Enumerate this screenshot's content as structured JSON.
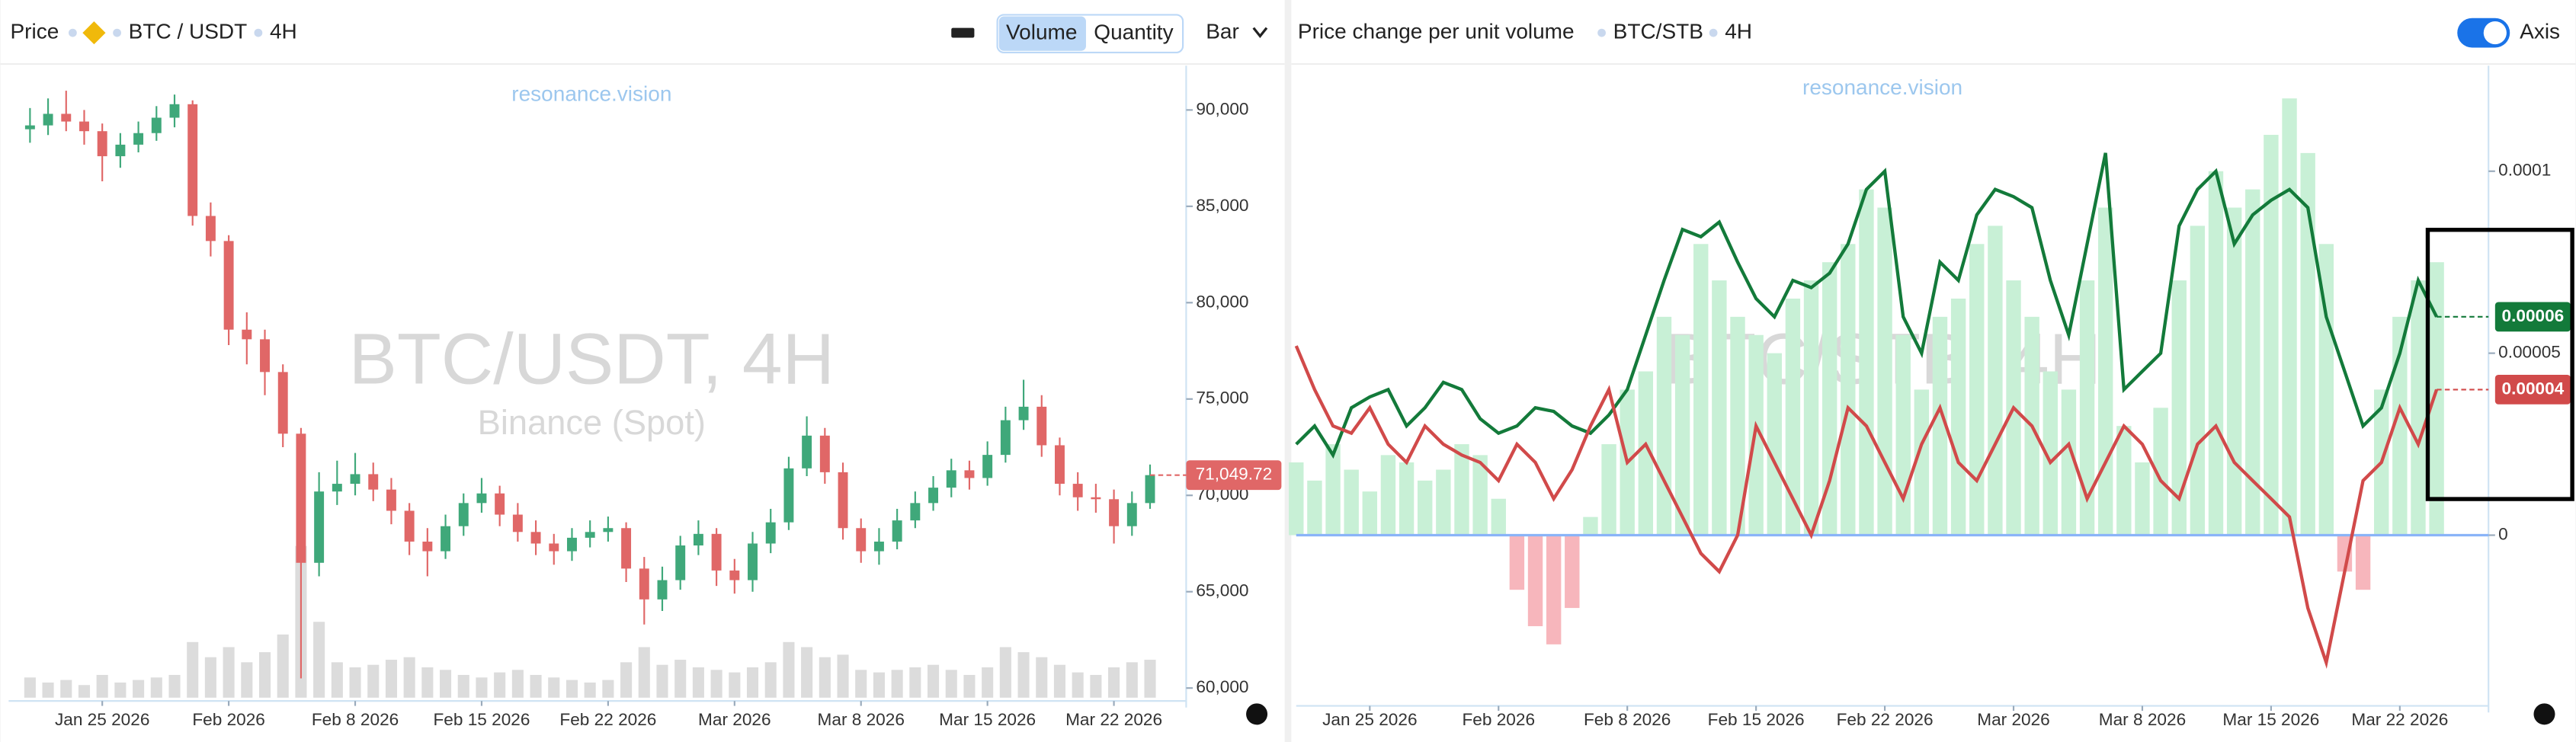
{
  "left_toolbar": {
    "label": "Price",
    "symbol": "BTC / USDT",
    "interval": "4H",
    "toggle_on": "Volume",
    "toggle_off": "Quantity",
    "style": "Bar"
  },
  "right_toolbar": {
    "label": "Price change per unit volume",
    "symbol": "BTC/STB",
    "interval": "4H",
    "switch": "Axis"
  },
  "chart_data": [
    {
      "type": "candlestick",
      "source": "resonance.vision",
      "watermark": "BTC/USDT, 4H",
      "watermark_subtitle": "Binance (Spot)",
      "x": [
        "2026-01-21",
        "2026-01-22",
        "2026-01-23",
        "2026-01-24",
        "2026-01-25",
        "2026-01-26",
        "2026-01-27",
        "2026-01-28",
        "2026-01-29",
        "2026-01-30",
        "2026-01-31",
        "2026-02-01",
        "2026-02-02",
        "2026-02-03",
        "2026-02-04",
        "2026-02-05",
        "2026-02-06",
        "2026-02-07",
        "2026-02-08",
        "2026-02-09",
        "2026-02-10",
        "2026-02-11",
        "2026-02-12",
        "2026-02-13",
        "2026-02-14",
        "2026-02-15",
        "2026-02-16",
        "2026-02-17",
        "2026-02-18",
        "2026-02-19",
        "2026-02-20",
        "2026-02-21",
        "2026-02-22",
        "2026-02-23",
        "2026-02-24",
        "2026-02-25",
        "2026-02-26",
        "2026-02-27",
        "2026-02-28",
        "2026-03-01",
        "2026-03-02",
        "2026-03-03",
        "2026-03-04",
        "2026-03-05",
        "2026-03-06",
        "2026-03-07",
        "2026-03-08",
        "2026-03-09",
        "2026-03-10",
        "2026-03-11",
        "2026-03-12",
        "2026-03-13",
        "2026-03-14",
        "2026-03-15",
        "2026-03-16",
        "2026-03-17",
        "2026-03-18",
        "2026-03-19",
        "2026-03-20",
        "2026-03-21",
        "2026-03-22",
        "2026-03-23",
        "2026-03-24"
      ],
      "open": [
        89000,
        89200,
        89800,
        89400,
        88900,
        87600,
        88200,
        88800,
        89600,
        90300,
        84500,
        83200,
        78600,
        78100,
        76400,
        73200,
        66500,
        70200,
        70600,
        71100,
        70300,
        69200,
        67600,
        67100,
        68400,
        69600,
        70100,
        69000,
        68100,
        67500,
        67100,
        67800,
        68100,
        68300,
        66200,
        64600,
        65600,
        67400,
        68000,
        66100,
        65600,
        67500,
        68600,
        71400,
        73100,
        71200,
        68300,
        67100,
        67600,
        68700,
        69600,
        70400,
        71300,
        70900,
        72100,
        73900,
        74600,
        72600,
        70600,
        69900,
        69800,
        68400,
        69600
      ],
      "high": [
        90100,
        90600,
        91000,
        90000,
        89300,
        88800,
        89400,
        90200,
        90800,
        90500,
        85200,
        83500,
        79500,
        78600,
        76800,
        73500,
        71200,
        71800,
        72200,
        71700,
        70900,
        69600,
        68300,
        69000,
        70100,
        70900,
        70500,
        69600,
        68700,
        68000,
        68300,
        68700,
        68900,
        68600,
        66800,
        66300,
        67900,
        68700,
        68300,
        66700,
        68100,
        69300,
        72000,
        74100,
        73500,
        71700,
        68800,
        68300,
        69300,
        70200,
        71000,
        71900,
        71800,
        72800,
        74600,
        76000,
        75200,
        73000,
        71200,
        70600,
        70300,
        70200,
        71600
      ],
      "low": [
        88300,
        88700,
        88900,
        88200,
        86300,
        87000,
        87800,
        88400,
        89100,
        84000,
        82400,
        77800,
        76800,
        75200,
        72500,
        60500,
        65800,
        69500,
        70000,
        69700,
        68500,
        66900,
        65800,
        66700,
        67900,
        69100,
        68400,
        67600,
        66900,
        66400,
        66600,
        67300,
        67600,
        65500,
        63300,
        64000,
        65100,
        66900,
        65300,
        64900,
        65000,
        67000,
        68200,
        71000,
        70600,
        67700,
        66500,
        66400,
        67200,
        68300,
        69200,
        69900,
        70300,
        70500,
        71700,
        73400,
        72000,
        70000,
        69200,
        69100,
        67500,
        67900,
        69300
      ],
      "close": [
        89200,
        89800,
        89400,
        88900,
        87600,
        88200,
        88800,
        89600,
        90300,
        84500,
        83200,
        78600,
        78100,
        76400,
        73200,
        66500,
        70200,
        70600,
        71100,
        70300,
        69200,
        67600,
        67100,
        68400,
        69600,
        70100,
        69000,
        68100,
        67500,
        67100,
        67800,
        68100,
        68300,
        66200,
        64600,
        65600,
        67400,
        68000,
        66100,
        65600,
        67500,
        68600,
        71400,
        73100,
        71200,
        68300,
        67100,
        67600,
        68700,
        69600,
        70400,
        71300,
        70900,
        72100,
        73900,
        74600,
        72600,
        70600,
        69900,
        69800,
        68400,
        69600,
        71049.72
      ],
      "volume": [
        8000,
        6000,
        7000,
        5000,
        9000,
        6000,
        7000,
        8000,
        9000,
        22000,
        16000,
        20000,
        14000,
        18000,
        25000,
        60000,
        30000,
        14000,
        12000,
        13000,
        15000,
        16000,
        12000,
        11000,
        9000,
        8000,
        10000,
        11000,
        9000,
        8000,
        7000,
        6000,
        7000,
        14000,
        20000,
        13000,
        15000,
        12000,
        11000,
        10000,
        12000,
        14000,
        22000,
        20000,
        16000,
        17000,
        11000,
        10000,
        11000,
        12000,
        13000,
        11000,
        9000,
        12000,
        20000,
        18000,
        16000,
        13000,
        10000,
        9000,
        12000,
        14000,
        15000
      ],
      "volume_lim": [
        0,
        100000
      ],
      "last_label": "71,049.72",
      "up_color": "#3fa87a",
      "down_color": "#e06767",
      "volume_color": "#dcdcdc",
      "xlim": [
        "2026-01-20",
        "2026-03-26"
      ],
      "xticks": [
        {
          "value": "2026-01-25",
          "label": "Jan 25 2026"
        },
        {
          "value": "2026-02-01",
          "label": "Feb 2026"
        },
        {
          "value": "2026-02-08",
          "label": "Feb 8 2026"
        },
        {
          "value": "2026-02-15",
          "label": "Feb 15 2026"
        },
        {
          "value": "2026-02-22",
          "label": "Feb 22 2026"
        },
        {
          "value": "2026-03-01",
          "label": "Mar 2026"
        },
        {
          "value": "2026-03-08",
          "label": "Mar 8 2026"
        },
        {
          "value": "2026-03-15",
          "label": "Mar 15 2026"
        },
        {
          "value": "2026-03-22",
          "label": "Mar 22 2026"
        }
      ],
      "ylim": [
        59500,
        92300
      ],
      "yticks": [
        {
          "value": 60000,
          "label": "60,000"
        },
        {
          "value": 65000,
          "label": "65,000"
        },
        {
          "value": 70000,
          "label": "70,000"
        },
        {
          "value": 75000,
          "label": "75,000"
        },
        {
          "value": 80000,
          "label": "80,000"
        },
        {
          "value": 85000,
          "label": "85,000"
        },
        {
          "value": 90000,
          "label": "90,000"
        }
      ]
    },
    {
      "type": "line",
      "source": "resonance.vision",
      "watermark": "BTC/STB, 4H",
      "x": [
        "2026-01-21",
        "2026-01-22",
        "2026-01-23",
        "2026-01-24",
        "2026-01-25",
        "2026-01-26",
        "2026-01-27",
        "2026-01-28",
        "2026-01-29",
        "2026-01-30",
        "2026-01-31",
        "2026-02-01",
        "2026-02-02",
        "2026-02-03",
        "2026-02-04",
        "2026-02-05",
        "2026-02-06",
        "2026-02-07",
        "2026-02-08",
        "2026-02-09",
        "2026-02-10",
        "2026-02-11",
        "2026-02-12",
        "2026-02-13",
        "2026-02-14",
        "2026-02-15",
        "2026-02-16",
        "2026-02-17",
        "2026-02-18",
        "2026-02-19",
        "2026-02-20",
        "2026-02-21",
        "2026-02-22",
        "2026-02-23",
        "2026-02-24",
        "2026-02-25",
        "2026-02-26",
        "2026-02-27",
        "2026-02-28",
        "2026-03-01",
        "2026-03-02",
        "2026-03-03",
        "2026-03-04",
        "2026-03-05",
        "2026-03-06",
        "2026-03-07",
        "2026-03-08",
        "2026-03-09",
        "2026-03-10",
        "2026-03-11",
        "2026-03-12",
        "2026-03-13",
        "2026-03-14",
        "2026-03-15",
        "2026-03-16",
        "2026-03-17",
        "2026-03-18",
        "2026-03-19",
        "2026-03-20",
        "2026-03-21",
        "2026-03-22",
        "2026-03-23",
        "2026-03-24"
      ],
      "histogram": {
        "color": "#c8f0d6",
        "negative_color": "#f7b6bc",
        "values": [
          2e-05,
          1.5e-05,
          2.5e-05,
          1.8e-05,
          1.2e-05,
          2.2e-05,
          2e-05,
          1.5e-05,
          1.8e-05,
          2.5e-05,
          2.2e-05,
          1e-05,
          -1.5e-05,
          -2.5e-05,
          -3e-05,
          -2e-05,
          5e-06,
          2.5e-05,
          4e-05,
          4.5e-05,
          6e-05,
          5.5e-05,
          8e-05,
          7e-05,
          6e-05,
          5.5e-05,
          5e-05,
          6.5e-05,
          7e-05,
          7.5e-05,
          8e-05,
          9.5e-05,
          9e-05,
          5.5e-05,
          4e-05,
          6e-05,
          6.5e-05,
          8e-05,
          8.5e-05,
          7e-05,
          6e-05,
          4.5e-05,
          4e-05,
          7e-05,
          9e-05,
          3e-05,
          2e-05,
          3.5e-05,
          7e-05,
          8.5e-05,
          0.0001,
          9e-05,
          9.5e-05,
          0.00011,
          0.00012,
          0.000105,
          8e-05,
          -1e-05,
          -1.5e-05,
          4e-05,
          6e-05,
          7e-05,
          7.5e-05
        ]
      },
      "series": [
        {
          "name": "BTC",
          "color": "#137a3a",
          "values": [
            2.5e-05,
            3e-05,
            2.2e-05,
            3.5e-05,
            3.8e-05,
            4e-05,
            3e-05,
            3.5e-05,
            4.2e-05,
            4e-05,
            3.2e-05,
            2.8e-05,
            3e-05,
            3.5e-05,
            3.4e-05,
            3e-05,
            2.8e-05,
            3.3e-05,
            4e-05,
            5.5e-05,
            7e-05,
            8.4e-05,
            8.2e-05,
            8.6e-05,
            7.5e-05,
            6.5e-05,
            6e-05,
            7e-05,
            6.8e-05,
            7.2e-05,
            8e-05,
            9.5e-05,
            0.0001,
            6e-05,
            5e-05,
            7.5e-05,
            7e-05,
            8.8e-05,
            9.5e-05,
            9.3e-05,
            9e-05,
            7e-05,
            5.5e-05,
            8e-05,
            0.000105,
            4e-05,
            4.5e-05,
            5e-05,
            8.5e-05,
            9.5e-05,
            0.0001,
            8e-05,
            8.8e-05,
            9.2e-05,
            9.5e-05,
            9e-05,
            6e-05,
            4.5e-05,
            3e-05,
            3.5e-05,
            5e-05,
            7e-05,
            6e-05
          ]
        },
        {
          "name": "STB",
          "color": "#d14a4a",
          "values": [
            5.2e-05,
            4e-05,
            3e-05,
            2.8e-05,
            3.5e-05,
            2.5e-05,
            2e-05,
            3e-05,
            2.5e-05,
            2.2e-05,
            2e-05,
            1.5e-05,
            2.5e-05,
            2e-05,
            1e-05,
            1.8e-05,
            3e-05,
            4e-05,
            2e-05,
            2.5e-05,
            1.5e-05,
            5e-06,
            -5e-06,
            -1e-05,
            0,
            3e-05,
            2e-05,
            1e-05,
            0,
            1.5e-05,
            3.5e-05,
            3e-05,
            2e-05,
            1e-05,
            2.5e-05,
            3.5e-05,
            2e-05,
            1.5e-05,
            2.5e-05,
            3.5e-05,
            3e-05,
            2e-05,
            2.5e-05,
            1e-05,
            2e-05,
            3e-05,
            2.5e-05,
            1.5e-05,
            1e-05,
            2.5e-05,
            3e-05,
            2e-05,
            1.5e-05,
            1e-05,
            5e-06,
            -2e-05,
            -3.5e-05,
            -1e-05,
            1.5e-05,
            2e-05,
            3.5e-05,
            2.5e-05,
            4e-05
          ]
        }
      ],
      "xlim": [
        "2026-01-21",
        "2026-03-27"
      ],
      "xticks": [
        {
          "value": "2026-01-25",
          "label": "Jan 25 2026"
        },
        {
          "value": "2026-02-01",
          "label": "Feb 2026"
        },
        {
          "value": "2026-02-08",
          "label": "Feb 8 2026"
        },
        {
          "value": "2026-02-15",
          "label": "Feb 15 2026"
        },
        {
          "value": "2026-02-22",
          "label": "Feb 22 2026"
        },
        {
          "value": "2026-03-01",
          "label": "Mar 2026"
        },
        {
          "value": "2026-03-08",
          "label": "Mar 8 2026"
        },
        {
          "value": "2026-03-15",
          "label": "Mar 15 2026"
        },
        {
          "value": "2026-03-22",
          "label": "Mar 22 2026"
        }
      ],
      "ylim": [
        -4.6e-05,
        0.000129
      ],
      "yticks": [
        0,
        5e-05,
        0.0001
      ],
      "zero_line_color": "#8ab4f8"
    }
  ]
}
